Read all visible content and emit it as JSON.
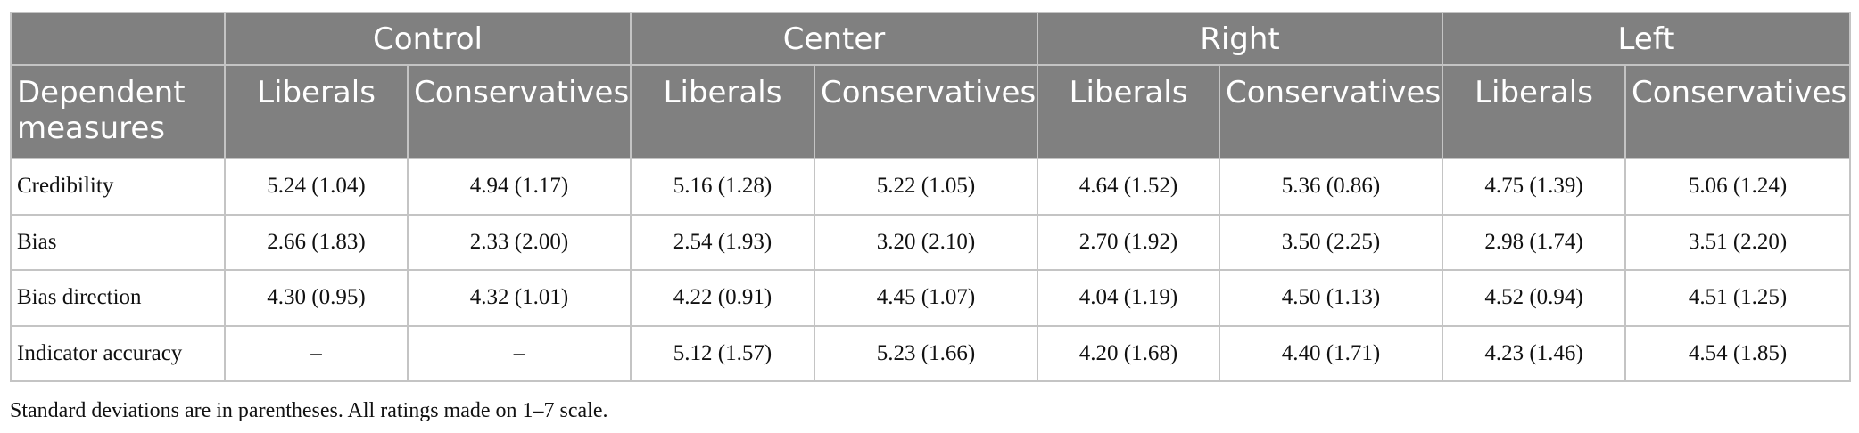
{
  "header": {
    "groups": [
      "Control",
      "Center",
      "Right",
      "Left"
    ],
    "columns": [
      "Dependent measures",
      "Liberals",
      "Conservatives",
      "Liberals",
      "Conservatives",
      "Liberals",
      "Conservatives",
      "Liberals",
      "Conservatives"
    ]
  },
  "table": {
    "rows": [
      [
        "Credibility",
        "5.24 (1.04)",
        "4.94 (1.17)",
        "5.16 (1.28)",
        "5.22 (1.05)",
        "4.64 (1.52)",
        "5.36 (0.86)",
        "4.75 (1.39)",
        "5.06 (1.24)"
      ],
      [
        "Bias",
        "2.66 (1.83)",
        "2.33 (2.00)",
        "2.54 (1.93)",
        "3.20 (2.10)",
        "2.70 (1.92)",
        "3.50 (2.25)",
        "2.98 (1.74)",
        "3.51 (2.20)"
      ],
      [
        "Bias direction",
        "4.30 (0.95)",
        "4.32 (1.01)",
        "4.22 (0.91)",
        "4.45 (1.07)",
        "4.04 (1.19)",
        "4.50 (1.13)",
        "4.52 (0.94)",
        "4.51 (1.25)"
      ],
      [
        "Indicator accuracy",
        "–",
        "–",
        "5.12 (1.57)",
        "5.23 (1.66)",
        "4.20 (1.68)",
        "4.40 (1.71)",
        "4.23 (1.46)",
        "4.54 (1.85)"
      ]
    ]
  },
  "footnote": "Standard deviations are in parentheses. All ratings made on 1–7 scale."
}
